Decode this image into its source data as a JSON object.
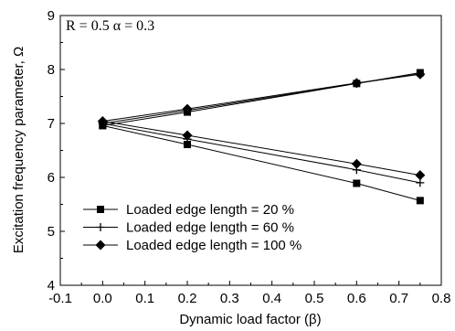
{
  "chart_data": {
    "type": "line",
    "annotation": "R = 0.5 α = 0.3",
    "xlabel": "Dynamic load factor (β)",
    "ylabel": "Excitation frequency parameter, Ω",
    "xlim": [
      -0.1,
      0.8
    ],
    "ylim": [
      4,
      9
    ],
    "xticks": [
      "-0.1",
      "0.0",
      "0.1",
      "0.2",
      "0.3",
      "0.4",
      "0.5",
      "0.6",
      "0.7",
      "0.8"
    ],
    "yticks": [
      "4",
      "5",
      "6",
      "7",
      "8",
      "9"
    ],
    "grid": false,
    "legend_position": "bottom-left",
    "series": [
      {
        "name": "Loaded edge length = 20 %",
        "marker": "square",
        "x": [
          0.0,
          0.2,
          0.6,
          0.75
        ],
        "upper": [
          6.96,
          7.21,
          7.74,
          7.94
        ],
        "lower": [
          6.96,
          6.61,
          5.89,
          5.57
        ]
      },
      {
        "name": "Loaded edge length = 60 %",
        "marker": "plus",
        "x": [
          0.0,
          0.2,
          0.6,
          0.75
        ],
        "upper": [
          7.0,
          7.24,
          7.74,
          7.92
        ],
        "lower": [
          7.0,
          6.71,
          6.14,
          5.9
        ]
      },
      {
        "name": "Loaded edge length = 100 %",
        "marker": "diamond",
        "x": [
          0.0,
          0.2,
          0.6,
          0.75
        ],
        "upper": [
          7.04,
          7.27,
          7.75,
          7.91
        ],
        "lower": [
          7.04,
          6.78,
          6.25,
          6.04
        ]
      }
    ]
  }
}
